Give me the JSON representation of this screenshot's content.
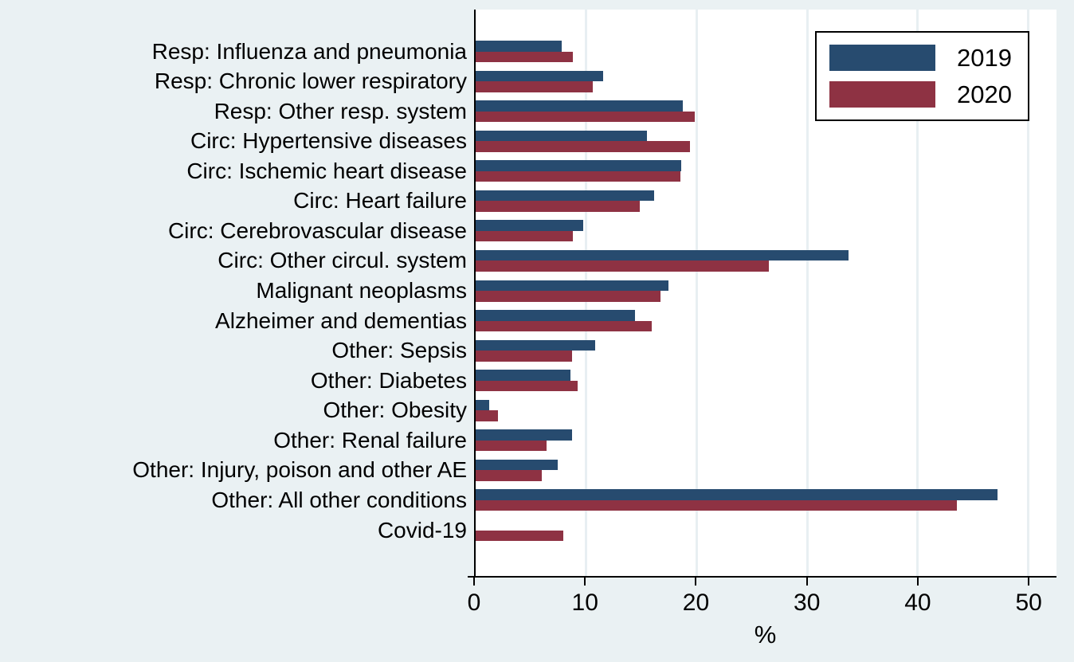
{
  "colors": {
    "background": "#eaf1f3",
    "plot_background": "#ffffff",
    "gridline": "#e8eff2",
    "axis": "#000000",
    "series_2019": "#274b6f",
    "series_2020": "#8e3243"
  },
  "chart_data": {
    "type": "bar",
    "orientation": "horizontal",
    "title": "",
    "xlabel": "%",
    "ylabel": "",
    "xlim": [
      0,
      52.5
    ],
    "x_ticks": [
      0,
      10,
      20,
      30,
      40,
      50
    ],
    "grid": "vertical",
    "legend_position": "top-right",
    "categories": [
      "Resp: Influenza and pneumonia",
      "Resp: Chronic lower respiratory",
      "Resp: Other resp. system",
      "Circ: Hypertensive diseases",
      "Circ: Ischemic heart disease",
      "Circ: Heart failure",
      "Circ: Cerebrovascular disease",
      "Circ: Other circul. system",
      "Malignant neoplasms",
      "Alzheimer and dementias",
      "Other: Sepsis",
      "Other: Diabetes",
      "Other: Obesity",
      "Other: Renal failure",
      "Other: Injury, poison and other AE",
      "Other: All other conditions",
      "Covid-19"
    ],
    "series": [
      {
        "name": "2019",
        "color": "#274b6f",
        "values": [
          7.8,
          11.5,
          18.7,
          15.5,
          18.6,
          16.1,
          9.7,
          33.7,
          17.4,
          14.4,
          10.8,
          8.6,
          1.2,
          8.7,
          7.4,
          47.2,
          0
        ]
      },
      {
        "name": "2020",
        "color": "#8e3243",
        "values": [
          8.8,
          10.6,
          19.8,
          19.4,
          18.5,
          14.8,
          8.8,
          26.5,
          16.7,
          15.9,
          8.7,
          9.2,
          2.0,
          6.4,
          6.0,
          43.5,
          7.9
        ]
      }
    ]
  }
}
